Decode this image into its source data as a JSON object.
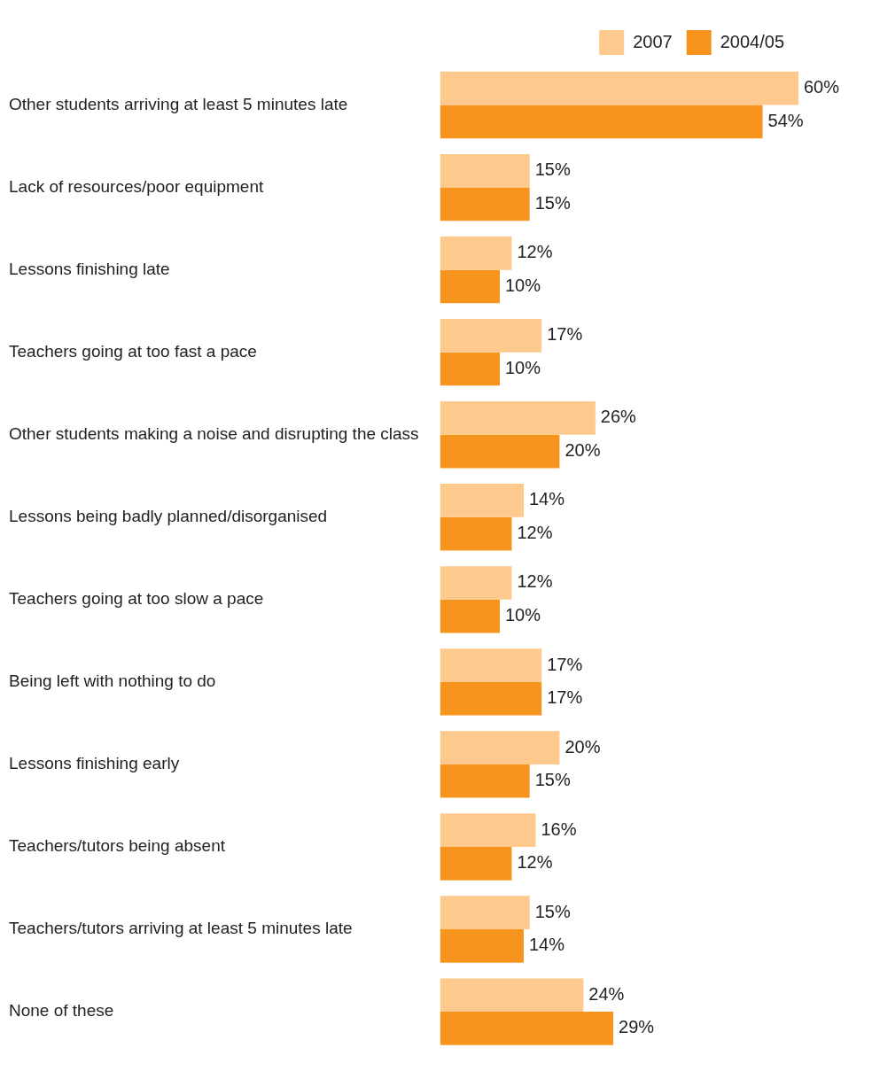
{
  "chart_data": {
    "type": "bar",
    "orientation": "horizontal",
    "legend": "top right",
    "categories": [
      "Other students arriving at least 5 minutes late",
      "Lack of resources/poor equipment",
      "Lessons finishing late",
      "Teachers going at too fast a pace",
      "Other students making a noise and disrupting the class",
      "Lessons being badly planned/disorganised",
      "Teachers going at too slow a pace",
      "Being left with nothing to do",
      "Lessons finishing early",
      "Teachers/tutors being absent",
      "Teachers/tutors arriving at least 5 minutes late",
      "None of these"
    ],
    "series": [
      {
        "name": "2007",
        "color": "#fdc98c",
        "values": [
          60,
          15,
          12,
          17,
          26,
          14,
          12,
          17,
          20,
          16,
          15,
          24
        ],
        "value_labels": [
          "60%",
          "15%",
          "12%",
          "17%",
          "26%",
          "14%",
          "12%",
          "17%",
          "20%",
          "16%",
          "15%",
          "24%"
        ]
      },
      {
        "name": "2004/05",
        "color": "#f7941d",
        "values": [
          54,
          15,
          10,
          10,
          20,
          12,
          10,
          17,
          15,
          12,
          14,
          29
        ],
        "value_labels": [
          "54%",
          "15%",
          "10%",
          "10%",
          "20%",
          "12%",
          "10%",
          "17%",
          "15%",
          "12%",
          "14%",
          "29%"
        ]
      }
    ]
  }
}
